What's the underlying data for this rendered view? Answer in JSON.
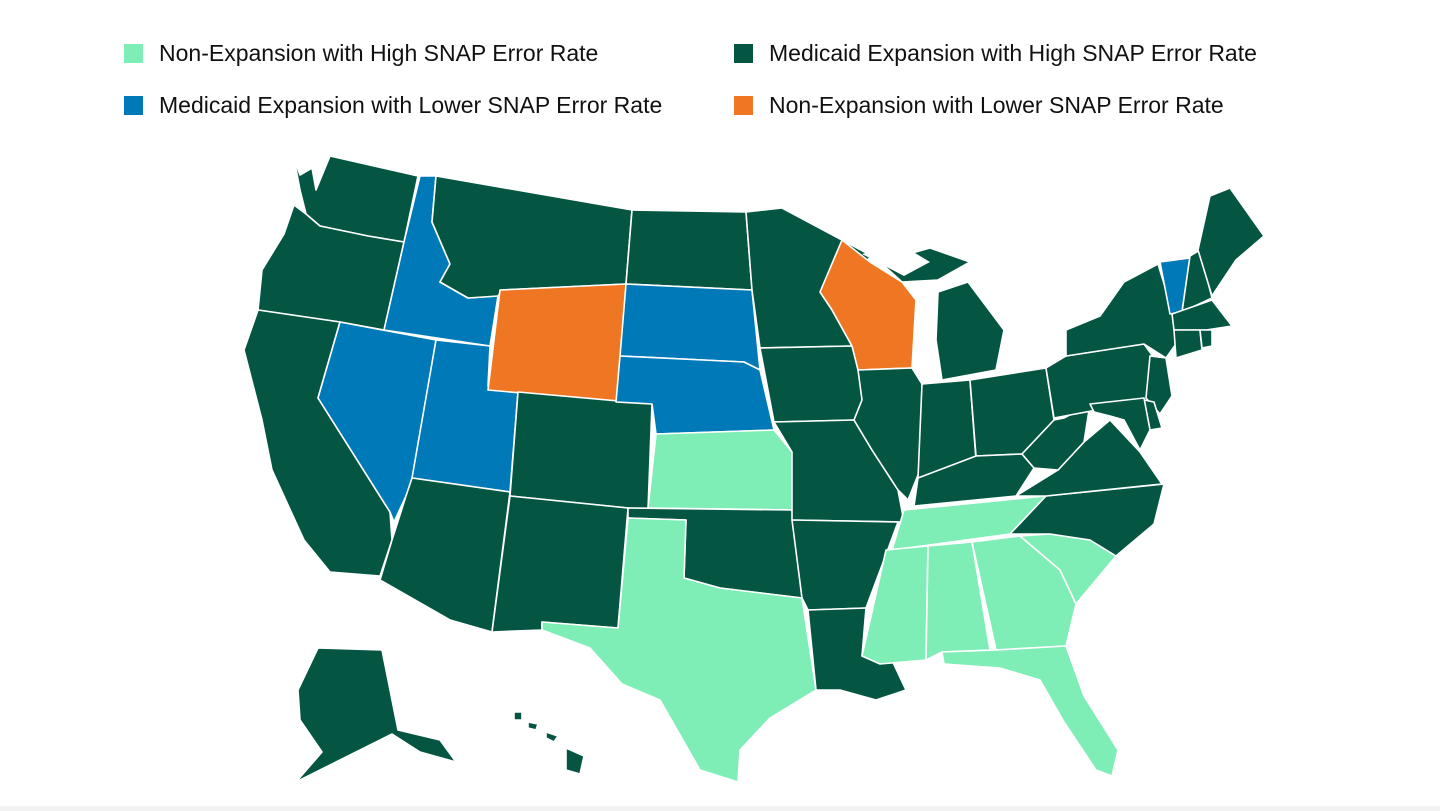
{
  "categories": {
    "non_high": {
      "label": "Non-Expansion with High SNAP Error Rate",
      "color": "#7eedb6"
    },
    "med_high": {
      "label": "Medicaid Expansion with High SNAP Error Rate",
      "color": "#045642"
    },
    "med_low": {
      "label": "Medicaid Expansion with Lower SNAP Error Rate",
      "color": "#0079b9"
    },
    "non_low": {
      "label": "Non-Expansion with Lower SNAP Error Rate",
      "color": "#ef7723"
    }
  },
  "legend_order": [
    "non_high",
    "med_high",
    "med_low",
    "non_low"
  ],
  "states": {
    "WA": "med_high",
    "OR": "med_high",
    "CA": "med_high",
    "ID": "med_low",
    "NV": "med_low",
    "UT": "med_low",
    "AZ": "med_high",
    "MT": "med_high",
    "WY": "non_low",
    "CO": "med_high",
    "NM": "med_high",
    "ND": "med_high",
    "SD": "med_low",
    "NE": "med_low",
    "KS": "non_high",
    "OK": "med_high",
    "TX": "non_high",
    "MN": "med_high",
    "IA": "med_high",
    "MO": "med_high",
    "AR": "med_high",
    "LA": "med_high",
    "WI": "non_low",
    "IL": "med_high",
    "MI": "med_high",
    "IN": "med_high",
    "OH": "med_high",
    "KY": "med_high",
    "TN": "non_high",
    "MS": "non_high",
    "AL": "non_high",
    "GA": "non_high",
    "FL": "non_high",
    "SC": "non_high",
    "NC": "med_high",
    "VA": "med_high",
    "WV": "med_high",
    "PA": "med_high",
    "NY": "med_high",
    "VT": "med_low",
    "NH": "med_high",
    "ME": "med_high",
    "MA": "med_high",
    "CT": "med_high",
    "RI": "med_high",
    "NJ": "med_high",
    "DE": "med_high",
    "MD": "med_high",
    "AK": "med_high",
    "HI": "med_high"
  }
}
